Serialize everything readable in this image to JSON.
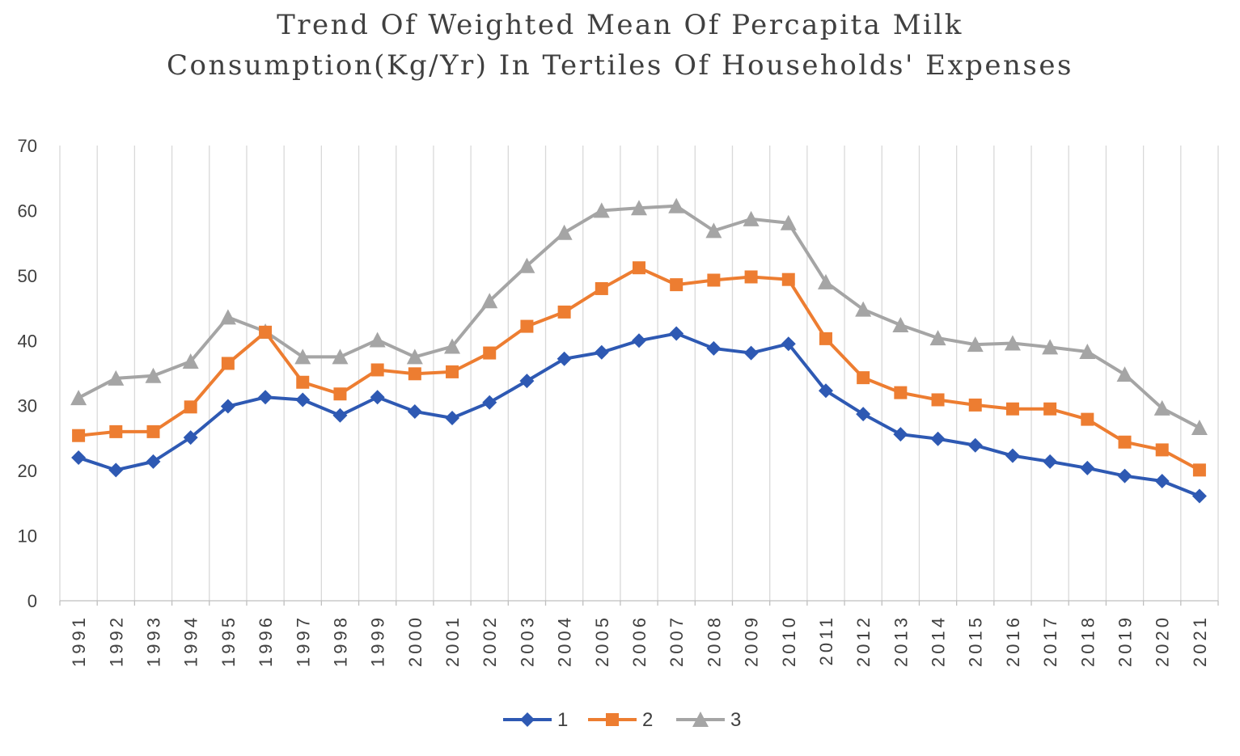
{
  "chart_data": {
    "type": "line",
    "title_line1": "Trend Of Weighted Mean Of Percapita Milk",
    "title_line2": "Consumption(Kg/Yr) In Tertiles Of Households' Expenses",
    "xlabel": "",
    "ylabel": "",
    "ylim": [
      0,
      70
    ],
    "yticks": [
      "0",
      "10",
      "20",
      "30",
      "40",
      "50",
      "60",
      "70"
    ],
    "grid": "vertical",
    "legend_position": "bottom",
    "categories": [
      "1991",
      "1992",
      "1993",
      "1994",
      "1995",
      "1996",
      "1997",
      "1998",
      "1999",
      "2000",
      "2001",
      "2002",
      "2003",
      "2004",
      "2005",
      "2006",
      "2007",
      "2008",
      "2009",
      "2010",
      "2011",
      "2012",
      "2013",
      "2014",
      "2015",
      "2016",
      "2017",
      "2018",
      "2019",
      "2020",
      "2021"
    ],
    "series": [
      {
        "name": "1",
        "color": "#2e59b3",
        "marker": "diamond",
        "values": [
          22,
          20.1,
          21.4,
          25.1,
          29.9,
          31.3,
          30.9,
          28.5,
          31.3,
          29.1,
          28.1,
          30.5,
          33.8,
          37.2,
          38.2,
          40,
          41.1,
          38.8,
          38.1,
          39.5,
          32.3,
          28.7,
          25.6,
          24.9,
          23.9,
          22.3,
          21.4,
          20.4,
          19.2,
          18.4,
          16.1
        ]
      },
      {
        "name": "2",
        "color": "#ed7d31",
        "marker": "square",
        "values": [
          25.4,
          26,
          26,
          29.8,
          36.5,
          41.3,
          33.6,
          31.8,
          35.5,
          34.9,
          35.2,
          38.1,
          42.2,
          44.4,
          48,
          51.2,
          48.6,
          49.3,
          49.8,
          49.4,
          40.3,
          34.3,
          32,
          30.9,
          30.1,
          29.5,
          29.5,
          27.9,
          24.4,
          23.2,
          20.1
        ]
      },
      {
        "name": "3",
        "color": "#a5a5a5",
        "marker": "triangle",
        "values": [
          31.2,
          34.2,
          34.6,
          36.8,
          43.6,
          41.4,
          37.5,
          37.5,
          40.1,
          37.5,
          39.1,
          46.1,
          51.5,
          56.6,
          60,
          60.4,
          60.7,
          56.9,
          58.7,
          58.1,
          49,
          44.8,
          42.4,
          40.4,
          39.4,
          39.6,
          39,
          38.3,
          34.8,
          29.6,
          26.6
        ]
      }
    ]
  }
}
